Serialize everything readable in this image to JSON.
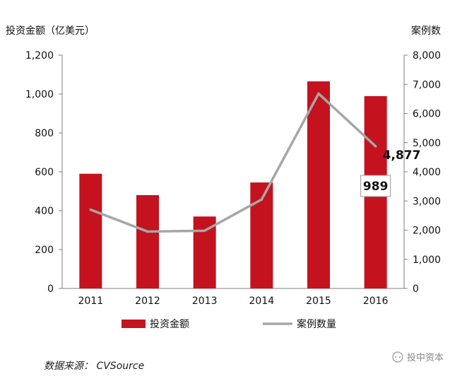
{
  "chart_data": {
    "type": "bar",
    "categories": [
      "2011",
      "2012",
      "2013",
      "2014",
      "2015",
      "2016"
    ],
    "series": [
      {
        "name": "投资金额",
        "type": "bar",
        "axis": "left",
        "color": "#c4121f",
        "values": [
          590,
          480,
          370,
          545,
          1065,
          989
        ]
      },
      {
        "name": "案例数量",
        "type": "line",
        "axis": "right",
        "color": "#a6a6a6",
        "values": [
          2700,
          1950,
          1980,
          3050,
          6680,
          4877
        ]
      }
    ],
    "ylabel_left": "投资金额（亿美元）",
    "ylabel_right": "案例数",
    "ylim_left": [
      0,
      1200
    ],
    "ylim_right": [
      0,
      8000
    ],
    "yticks_left": [
      "0",
      "200",
      "400",
      "600",
      "800",
      "1,000",
      "1,200"
    ],
    "yticks_right": [
      "0",
      "1,000",
      "2,000",
      "3,000",
      "4,000",
      "5,000",
      "6,000",
      "7,000",
      "8,000"
    ],
    "annotations": [
      {
        "text": "4,877",
        "series": "案例数量",
        "category": "2016"
      },
      {
        "text": "989",
        "series": "投资金额",
        "category": "2016",
        "boxed": true
      }
    ],
    "legend_position": "bottom",
    "grid": false
  },
  "source_note": "数据来源： CVSource",
  "watermark": "投中资本"
}
